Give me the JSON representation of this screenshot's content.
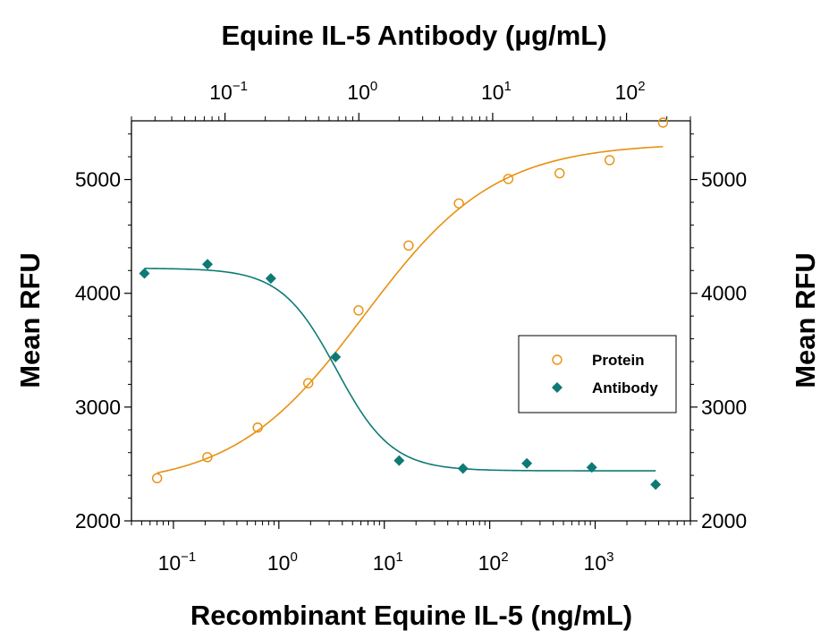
{
  "chart_data": {
    "type": "scatter",
    "title": "",
    "xlabel_bottom": "Recombinant Equine IL-5 (ng/mL)",
    "xlabel_top": "Equine IL-5 Antibody (μg/mL)",
    "ylabel_left": "Mean RFU",
    "ylabel_right": "Mean RFU",
    "x_scale": "log",
    "x_bottom_lim": [
      0.04,
      8000
    ],
    "x_top_lim": [
      0.02,
      300
    ],
    "ylim": [
      2000,
      5500
    ],
    "y_ticks": [
      2000,
      3000,
      4000,
      5000
    ],
    "x_bottom_ticks": [
      {
        "base": "10",
        "exp": "−1"
      },
      {
        "base": "10",
        "exp": "0"
      },
      {
        "base": "10",
        "exp": "1"
      },
      {
        "base": "10",
        "exp": "2"
      },
      {
        "base": "10",
        "exp": "3"
      }
    ],
    "x_top_ticks": [
      {
        "base": "10",
        "exp": "−1"
      },
      {
        "base": "10",
        "exp": "0"
      },
      {
        "base": "10",
        "exp": "1"
      },
      {
        "base": "10",
        "exp": "2"
      }
    ],
    "legend_position": "right",
    "grid": false,
    "series": [
      {
        "name": "Protein",
        "axis": "bottom",
        "marker": "open-circle",
        "color": "#e8900f",
        "x": [
          0.07,
          0.21,
          0.63,
          1.9,
          5.7,
          17,
          51,
          150,
          460,
          1370,
          4400
        ],
        "y": [
          2375,
          2560,
          2820,
          3210,
          3850,
          4420,
          4790,
          5005,
          5055,
          5170,
          5500
        ],
        "fit": {
          "type": "4PL",
          "bottom": 2300,
          "top": 5320,
          "ec50": 6.5,
          "hill": 0.7
        }
      },
      {
        "name": "Antibody",
        "axis": "top",
        "marker": "filled-diamond",
        "color": "#0e7a75",
        "x": [
          0.025,
          0.074,
          0.22,
          0.67,
          2.0,
          6.0,
          18,
          55,
          165
        ],
        "y": [
          4175,
          4255,
          4130,
          3440,
          2530,
          2460,
          2505,
          2470,
          2320
        ],
        "fit": {
          "type": "4PL",
          "bottom": 2440,
          "top": 4220,
          "ec50": 0.68,
          "hill": 2.1
        }
      }
    ]
  }
}
